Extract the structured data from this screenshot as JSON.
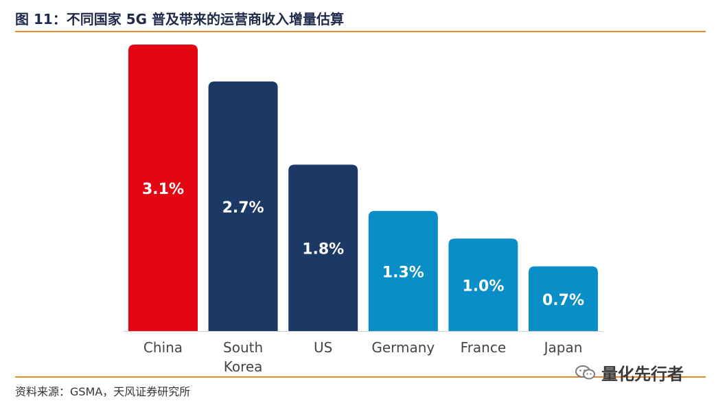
{
  "header": {
    "title": "图 11：不同国家 5G 普及带来的运营商收入增量估算"
  },
  "footer": {
    "source": "资料来源：GSMA，天风证券研究所",
    "watermark_text": "量化先行者",
    "watermark_icon": "wechat-icon"
  },
  "colors": {
    "china": "#e30613",
    "dark_blue": "#1c3966",
    "light_blue": "#0a8ec8",
    "rule": "#e8862a"
  },
  "chart_data": {
    "type": "bar",
    "categories": [
      [
        "China"
      ],
      [
        "South",
        "Korea"
      ],
      [
        "US"
      ],
      [
        "Germany"
      ],
      [
        "France"
      ],
      [
        "Japan"
      ]
    ],
    "values": [
      3.1,
      2.7,
      1.8,
      1.3,
      1.0,
      0.7
    ],
    "labels": [
      "3.1%",
      "2.7%",
      "1.8%",
      "1.3%",
      "1.0%",
      "0.7%"
    ],
    "bar_colors": [
      "#e30613",
      "#1c3966",
      "#1c3966",
      "#0a8ec8",
      "#0a8ec8",
      "#0a8ec8"
    ],
    "title": "",
    "xlabel": "",
    "ylabel": "",
    "ylim": [
      0,
      3.1
    ],
    "grid": false,
    "legend": "none"
  }
}
